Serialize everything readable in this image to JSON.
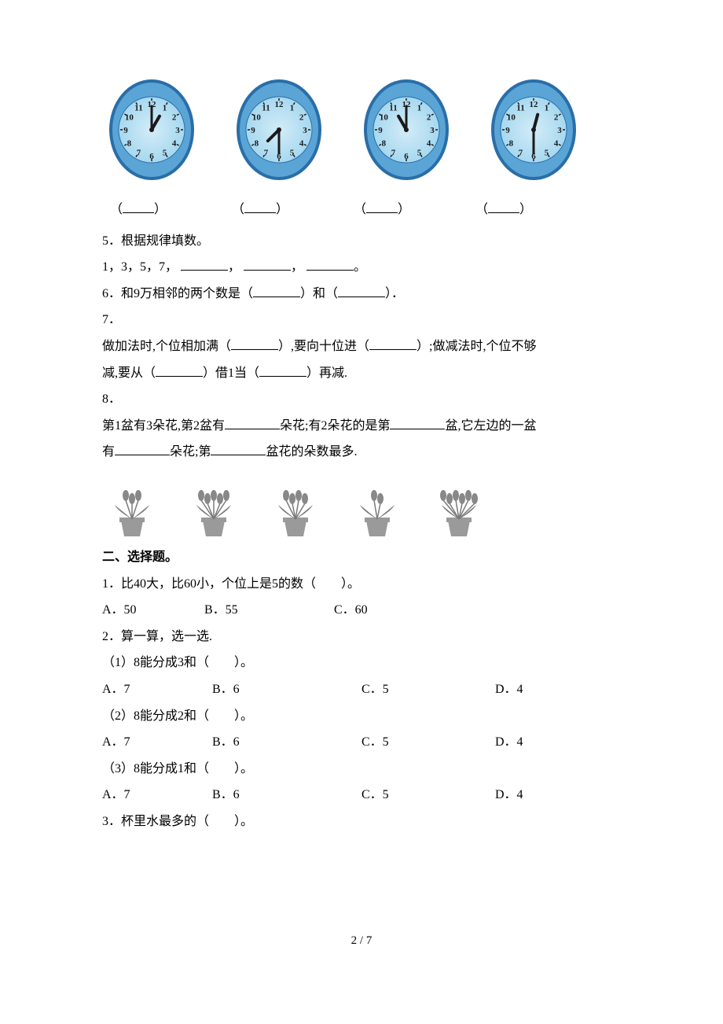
{
  "clocks": [
    {
      "hour_angle": 30,
      "minute_angle": 0
    },
    {
      "hour_angle": 225,
      "minute_angle": 180
    },
    {
      "hour_angle": 330,
      "minute_angle": 0
    },
    {
      "hour_angle": 15,
      "minute_angle": 180
    }
  ],
  "clock_style": {
    "face_fill": "#a6d8f0",
    "face_fill_light": "#d4ecf7",
    "rim_outer": "#2a6ea8",
    "rim_inner": "#5aa5d6",
    "tick_color": "#1a1a1a",
    "number_color": "#1a1a1a",
    "hand_color": "#1a1a1a",
    "center_color": "#1a1a1a"
  },
  "answer_slots": {
    "open": "（",
    "close": "）"
  },
  "q5": {
    "title": "5．根据规律填数。",
    "seq_prefix": "1，3，5，7，",
    "sep": "，",
    "end": "。"
  },
  "q6": {
    "text_a": "6．和9万相邻的两个数是（",
    "text_b": "）和（",
    "text_c": "）．"
  },
  "q7": {
    "title": "7．",
    "line1_a": "做加法时,个位相加满（",
    "line1_b": "）,要向十位进（",
    "line1_c": "）;做减法时,个位不够",
    "line2_a": "减,要从（",
    "line2_b": "）借1当（",
    "line2_c": "）再减."
  },
  "q8": {
    "title": "8．",
    "line1_a": "第1盆有3朵花,第2盆有",
    "line1_b": "朵花;有2朵花的是第",
    "line1_c": "盆,它左边的一盆",
    "line2_a": "有",
    "line2_b": "朵花;第",
    "line2_c": "盆花的朵数最多."
  },
  "pots": {
    "counts": [
      3,
      5,
      4,
      2,
      6
    ],
    "pot_fill": "#9a9a9a",
    "flower_fill": "#888888",
    "stem_fill": "#7a7a7a"
  },
  "section2": {
    "title": "二、选择题。"
  },
  "s2q1": {
    "stem": "1．比40大，比60小，个位上是5的数（　　）。",
    "opts": {
      "a": "A．50",
      "b": "B．55",
      "c": "C．60"
    }
  },
  "s2q2": {
    "stem": "2．算一算，选一选.",
    "sub1": "（1）8能分成3和（　　）。",
    "sub2": "（2）8能分成2和（　　）。",
    "sub3": "（3）8能分成1和（　　）。",
    "opts": {
      "a": "A．7",
      "b": "B．6",
      "c": "C．5",
      "d": "D．4"
    }
  },
  "s2q3": {
    "stem": "3．杯里水最多的（　　）。"
  },
  "page": {
    "num": "2 / 7"
  }
}
